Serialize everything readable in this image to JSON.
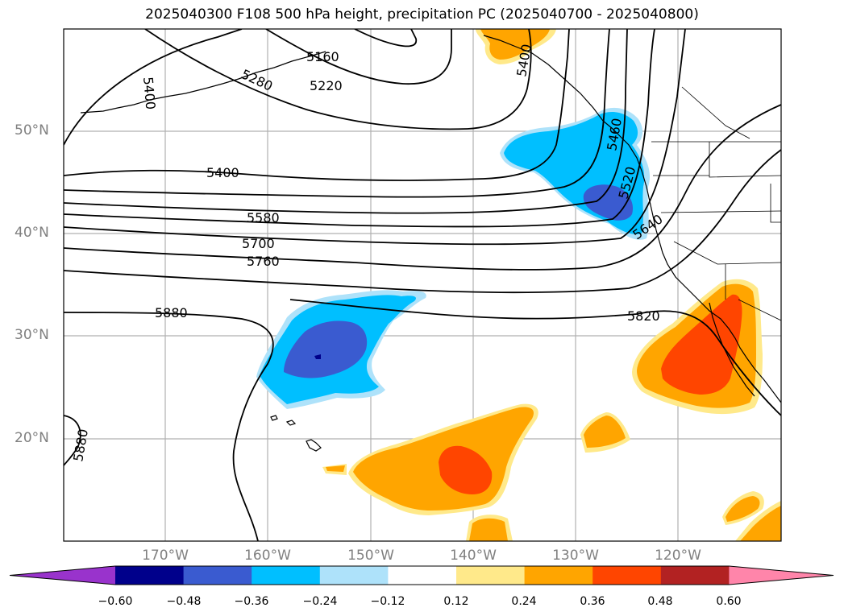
{
  "title": "2025040300 F108 500 hPa height, precipitation PC (2025040700 - 2025040800)",
  "lat_labels": [
    "50°N",
    "40°N",
    "30°N",
    "20°N"
  ],
  "lon_labels": [
    "170°W",
    "160°W",
    "150°W",
    "140°W",
    "130°W",
    "120°W"
  ],
  "colorbar": {
    "ticks": [
      "−0.60",
      "−0.48",
      "−0.36",
      "−0.24",
      "−0.12",
      "0.12",
      "0.24",
      "0.36",
      "0.48",
      "0.60"
    ],
    "colors": [
      "#9933cc",
      "#00008b",
      "#3a5bd0",
      "#00bfff",
      "#aee2fa",
      "#ffffff",
      "#ffe98a",
      "#ffa500",
      "#ff4500",
      "#b22222",
      "#ff85aa"
    ]
  },
  "contour_labels": [
    "5400",
    "5280",
    "5160",
    "5220",
    "5400",
    "5580",
    "5700",
    "5760",
    "5880",
    "5820",
    "5640",
    "5880",
    "5460",
    "5520",
    "5400"
  ]
}
